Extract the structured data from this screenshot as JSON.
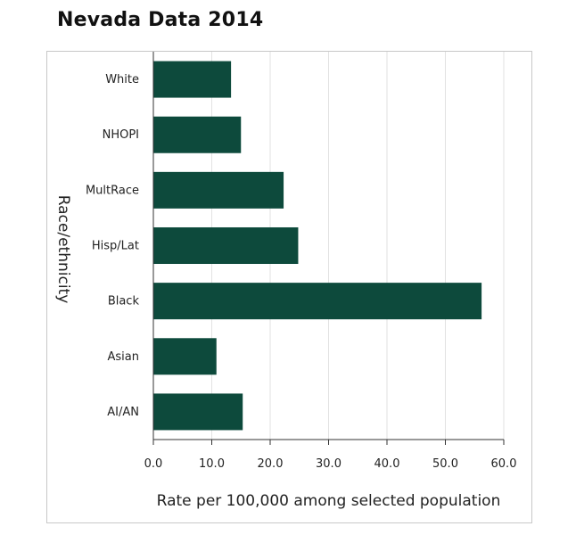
{
  "title": "Nevada Data 2014",
  "chart_data": {
    "type": "bar",
    "orientation": "horizontal",
    "title": "Nevada Data 2014",
    "categories": [
      "White",
      "NHOPI",
      "MultRace",
      "Hisp/Lat",
      "Black",
      "Asian",
      "AI/AN"
    ],
    "values": [
      13.3,
      15.0,
      22.3,
      24.8,
      56.2,
      10.8,
      15.3
    ],
    "xlabel": "Rate per 100,000 among selected population",
    "ylabel": "Race/ethnicity",
    "xlim": [
      0,
      60
    ],
    "xticks": [
      "0.0",
      "10.0",
      "20.0",
      "30.0",
      "40.0",
      "50.0",
      "60.0"
    ],
    "grid": "vertical",
    "bar_color": "#0d4a3c",
    "grid_color": "#e2e2e2"
  }
}
